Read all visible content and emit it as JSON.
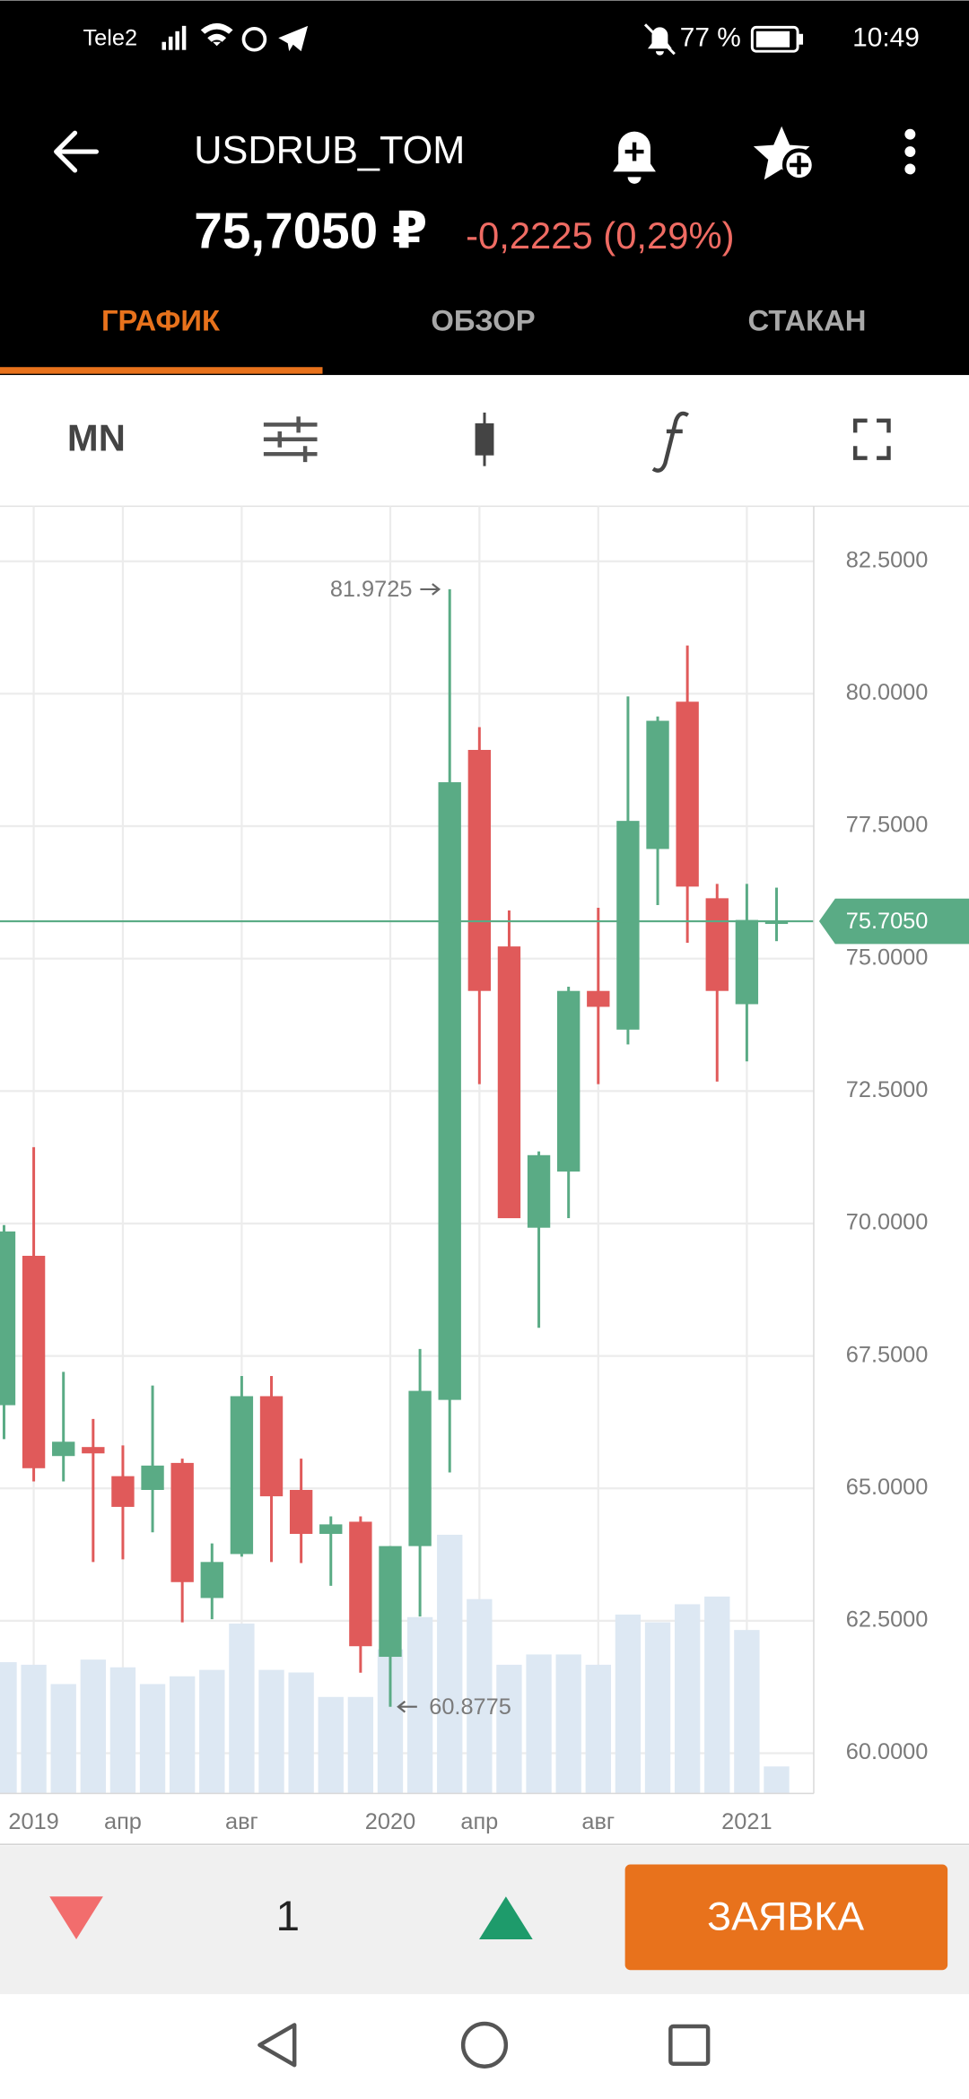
{
  "status_bar": {
    "carrier": "Tele2",
    "battery": "77 %",
    "time": "10:49"
  },
  "header": {
    "ticker": "USDRUB_TOM",
    "price": "75,7050 ₽",
    "change": "-0,2225 (0,29%)"
  },
  "tabs": [
    "ГРАФИК",
    "ОБЗОР",
    "СТАКАН"
  ],
  "toolbar": {
    "period": "MN"
  },
  "chart_data": {
    "type": "candlestick",
    "categories": [
      null,
      "2019",
      null,
      null,
      "апр",
      null,
      null,
      null,
      "авг",
      null,
      null,
      null,
      null,
      "2020",
      null,
      null,
      "апр",
      null,
      null,
      null,
      "авг",
      null,
      null,
      null,
      null,
      "2021",
      null
    ],
    "open": [
      66.57,
      69.39,
      65.61,
      65.78,
      65.23,
      64.97,
      65.48,
      62.93,
      63.76,
      66.74,
      64.97,
      64.14,
      64.37,
      61.82,
      63.91,
      66.67,
      78.94,
      75.23,
      69.92,
      70.98,
      74.39,
      73.66,
      77.07,
      79.85,
      76.14,
      74.14,
      75.68
    ],
    "high": [
      69.97,
      71.44,
      67.2,
      66.31,
      65.81,
      66.94,
      65.56,
      63.96,
      67.12,
      67.12,
      65.56,
      64.47,
      64.47,
      63.91,
      67.63,
      81.9725,
      79.37,
      75.91,
      71.36,
      74.47,
      75.96,
      79.95,
      79.57,
      80.91,
      76.41,
      76.41,
      76.34
    ],
    "low": [
      65.93,
      65.13,
      65.13,
      63.61,
      63.66,
      64.17,
      62.47,
      62.53,
      63.71,
      63.61,
      63.59,
      63.16,
      61.52,
      60.8775,
      62.58,
      65.3,
      72.63,
      70.1,
      68.03,
      70.1,
      72.63,
      73.38,
      76.01,
      75.3,
      72.68,
      73.06,
      75.33
    ],
    "close": [
      69.85,
      65.38,
      65.88,
      65.66,
      64.65,
      65.43,
      63.23,
      63.61,
      66.74,
      64.85,
      64.14,
      64.32,
      62.02,
      63.91,
      66.84,
      78.33,
      74.39,
      70.1,
      71.29,
      74.39,
      74.09,
      77.6,
      79.49,
      76.36,
      74.39,
      75.73,
      75.705
    ],
    "high_labels": [
      null,
      null,
      null,
      null,
      null,
      null,
      null,
      null,
      null,
      null,
      null,
      null,
      null,
      null,
      null,
      "81.9725",
      null,
      null,
      null,
      null,
      null,
      null,
      null,
      null,
      null,
      null,
      null
    ],
    "low_labels": [
      null,
      null,
      null,
      null,
      null,
      null,
      null,
      null,
      null,
      null,
      null,
      null,
      null,
      "60.8775",
      null,
      null,
      null,
      null,
      null,
      null,
      null,
      null,
      null,
      null,
      null,
      null,
      null
    ],
    "up_color": "#5aab85",
    "down_color": "#e05a5a",
    "volume": {
      "color": "#dde8f3",
      "ylim": [
        0,
        100
      ],
      "values": [
        10.2,
        10,
        8.5,
        10.4,
        9.8,
        8.5,
        9.1,
        9.6,
        13.2,
        9.6,
        9.4,
        7.5,
        7.5,
        11.2,
        13.7,
        20.1,
        15.1,
        10,
        10.8,
        10.8,
        10,
        13.9,
        13.3,
        14.7,
        15.3,
        12.7,
        2.1
      ]
    },
    "ylim": [
      59.24,
      83.54
    ],
    "yticks": [
      {
        "value": 60,
        "label": "60.0000"
      },
      {
        "value": 62.5,
        "label": "62.5000"
      },
      {
        "value": 65,
        "label": "65.0000"
      },
      {
        "value": 67.5,
        "label": "67.5000"
      },
      {
        "value": 70,
        "label": "70.0000"
      },
      {
        "value": 72.5,
        "label": "72.5000"
      },
      {
        "value": 75,
        "label": "75.0000"
      },
      {
        "value": 77.5,
        "label": "77.5000"
      },
      {
        "value": 80,
        "label": "80.0000"
      },
      {
        "value": 82.5,
        "label": "82.5000"
      }
    ],
    "last_price": {
      "value": 75.705,
      "label": "75.7050",
      "color": "#5aab85"
    },
    "grid": true
  },
  "order_bar": {
    "quantity": 1,
    "button": "ЗАЯВКА"
  }
}
